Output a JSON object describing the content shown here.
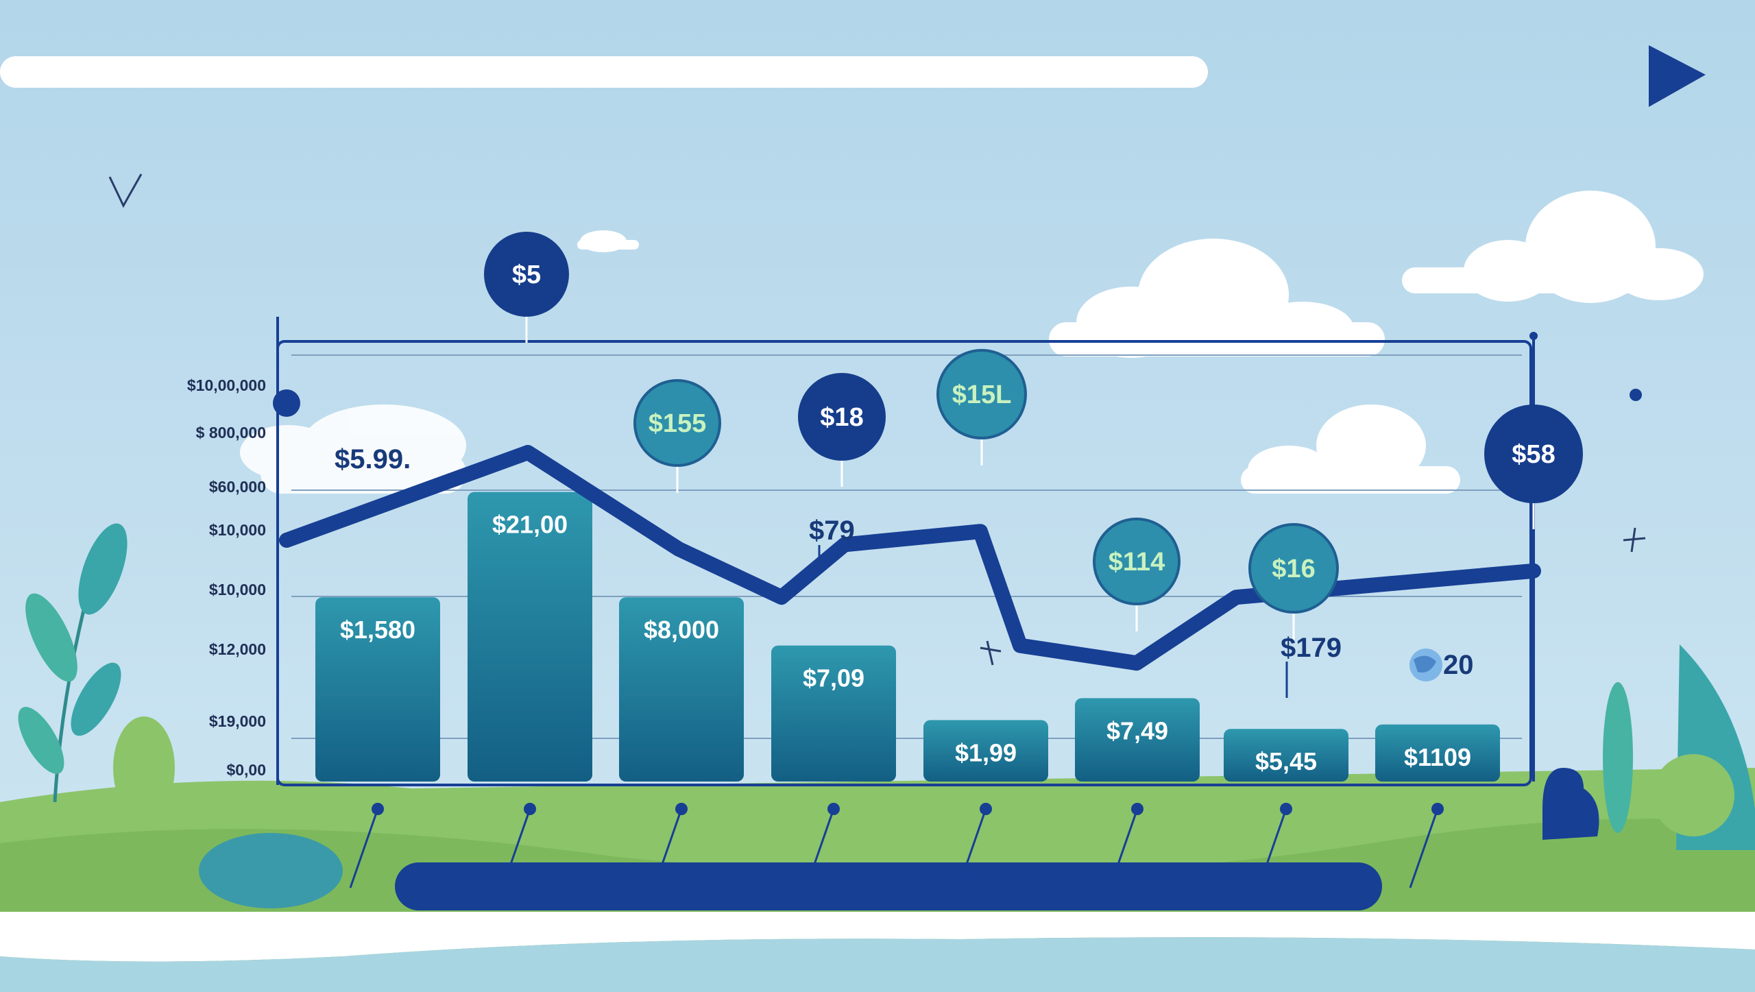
{
  "colors": {
    "sky": "#b6d8ea",
    "sky_light": "#d6ebf4",
    "navy": "#173f94",
    "teal_top": "#2e98ae",
    "teal_bottom": "#135f84",
    "node": "#2d8fab",
    "node_dark": "#163d8c",
    "grass": "#8fc36a",
    "grass_dark": "#6fae55",
    "leaf": "#3aa6a9",
    "white": "#ffffff"
  },
  "icons": {
    "play": "play-icon",
    "checkmark": "checkmark-icon",
    "sparkle": "sparkle-icon",
    "globe": "globe-icon",
    "dot": "dot-icon"
  },
  "chart_data": {
    "type": "bar",
    "title": "",
    "xlabel": "",
    "ylabel": "",
    "grid": true,
    "y_tick_labels": [
      "$10,00,000",
      "$ 800,000",
      "$60,000",
      "$10,000",
      "$10,000",
      "$12,000",
      "$19,000",
      "$0,00"
    ],
    "bar_heights_relative": [
      0.42,
      0.66,
      0.42,
      0.31,
      0.14,
      0.19,
      0.12,
      0.13
    ],
    "bar_labels": [
      "$1,580",
      "$21,00",
      "$8,000",
      "$7,09",
      "$1,99",
      "$7,49",
      "$5,45",
      "$1109"
    ],
    "line_relative": [
      0.55,
      0.75,
      0.53,
      0.42,
      0.54,
      0.57,
      0.31,
      0.27,
      0.42,
      0.48
    ],
    "node_labels": [
      "$5",
      "$155",
      "$18",
      "$15L",
      "$114",
      "$16",
      "$58"
    ],
    "annotations": [
      "$5.99.",
      "$79",
      "$179",
      "20"
    ]
  }
}
